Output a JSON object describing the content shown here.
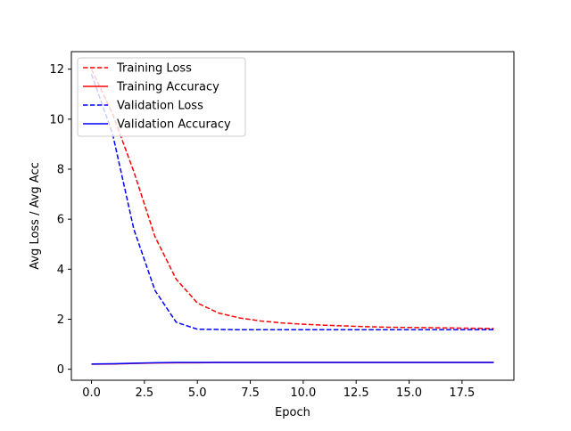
{
  "chart_data": {
    "type": "line",
    "title": "",
    "xlabel": "Epoch",
    "ylabel": "Avg Loss / Avg Acc",
    "xlim": [
      -0.95,
      19.95
    ],
    "ylim": [
      -0.44,
      12.7
    ],
    "grid": false,
    "legend_position": "top-left",
    "xticks": [
      0,
      2.5,
      5,
      7.5,
      10,
      12.5,
      15,
      17.5
    ],
    "xtick_labels": [
      "0.0",
      "2.5",
      "5.0",
      "7.5",
      "10.0",
      "12.5",
      "15.0",
      "17.5"
    ],
    "yticks": [
      0,
      2,
      4,
      6,
      8,
      10,
      12
    ],
    "ytick_labels": [
      "0",
      "2",
      "4",
      "6",
      "8",
      "10",
      "12"
    ],
    "x": [
      0,
      1,
      2,
      3,
      4,
      5,
      6,
      7,
      8,
      9,
      10,
      11,
      12,
      13,
      14,
      15,
      16,
      17,
      18,
      19
    ],
    "series": [
      {
        "name": "Training Loss",
        "color": "#ff0000",
        "style": "dashed",
        "values": [
          12.0,
          10.2,
          7.9,
          5.3,
          3.6,
          2.65,
          2.25,
          2.05,
          1.93,
          1.85,
          1.8,
          1.76,
          1.73,
          1.7,
          1.68,
          1.67,
          1.66,
          1.65,
          1.64,
          1.63
        ]
      },
      {
        "name": "Training Accuracy",
        "color": "#ff0000",
        "style": "solid",
        "values": [
          0.2,
          0.21,
          0.23,
          0.25,
          0.26,
          0.26,
          0.27,
          0.27,
          0.27,
          0.27,
          0.27,
          0.27,
          0.27,
          0.27,
          0.27,
          0.27,
          0.27,
          0.27,
          0.27,
          0.27
        ]
      },
      {
        "name": "Validation Loss",
        "color": "#0000ff",
        "style": "dashed",
        "values": [
          11.8,
          9.4,
          5.6,
          3.15,
          1.88,
          1.6,
          1.59,
          1.58,
          1.58,
          1.58,
          1.58,
          1.58,
          1.58,
          1.58,
          1.58,
          1.58,
          1.58,
          1.58,
          1.58,
          1.58
        ]
      },
      {
        "name": "Validation Accuracy",
        "color": "#0000ff",
        "style": "solid",
        "values": [
          0.21,
          0.22,
          0.24,
          0.26,
          0.27,
          0.27,
          0.27,
          0.27,
          0.27,
          0.27,
          0.27,
          0.27,
          0.27,
          0.27,
          0.27,
          0.27,
          0.27,
          0.27,
          0.27,
          0.27
        ]
      }
    ]
  }
}
